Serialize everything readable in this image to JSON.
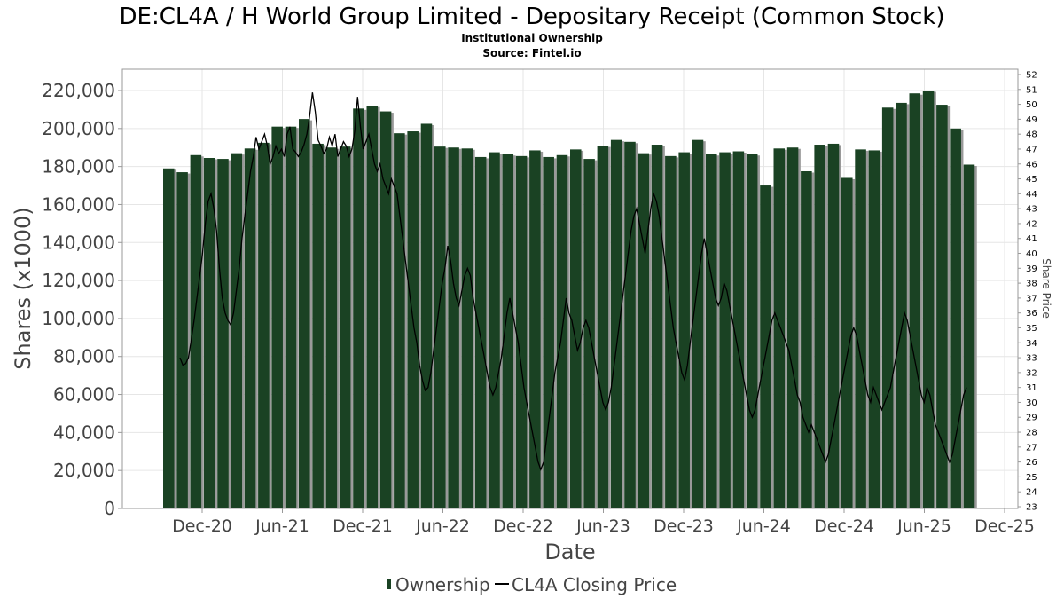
{
  "title": "DE:CL4A / H World Group Limited - Depositary Receipt (Common Stock)",
  "subtitle_1": "Institutional Ownership",
  "subtitle_2": "Source: Fintel.io",
  "chart_data": {
    "type": "bar",
    "xlabel": "Date",
    "ylabel": "Shares (x1000)",
    "y2label": "Share Price",
    "ylim": [
      0,
      220000
    ],
    "y2lim": [
      23,
      52
    ],
    "x_tick_labels": [
      "Dec-20",
      "Jun-21",
      "Dec-21",
      "Jun-22",
      "Dec-22",
      "Jun-23",
      "Dec-23",
      "Jun-24",
      "Dec-24",
      "Jun-25",
      "Dec-25"
    ],
    "y_tick_labels": [
      "0",
      "20,000",
      "40,000",
      "60,000",
      "80,000",
      "100,000",
      "120,000",
      "140,000",
      "160,000",
      "180,000",
      "200,000",
      "220,000"
    ],
    "y2_tick_labels": [
      "23",
      "24",
      "25",
      "26",
      "27",
      "28",
      "29",
      "30",
      "31",
      "32",
      "33",
      "34",
      "35",
      "36",
      "37",
      "38",
      "39",
      "40",
      "41",
      "42",
      "43",
      "44",
      "45",
      "46",
      "47",
      "48",
      "49",
      "50",
      "51",
      "52"
    ],
    "legend": [
      {
        "name": "Ownership",
        "color": "#1a4223"
      },
      {
        "name": "CL4A Closing Price",
        "color": "#000000"
      }
    ],
    "legend_position": "bottom-center",
    "grid": true,
    "bar_color": "#1a4223",
    "bar_shadow_color": "#999999",
    "series": [
      {
        "name": "Ownership",
        "type": "bar",
        "values": [
          179000,
          177000,
          186000,
          184500,
          184000,
          187000,
          189500,
          192500,
          201000,
          201000,
          205000,
          192000,
          190000,
          190500,
          210500,
          212000,
          209000,
          197500,
          198500,
          202500,
          190500,
          190000,
          189500,
          185000,
          187500,
          186500,
          185500,
          188500,
          185000,
          186000,
          189000,
          184000,
          191000,
          194000,
          193000,
          187000,
          191500,
          185500,
          187500,
          194000,
          186500,
          187500,
          188000,
          186500,
          170000,
          189500,
          190000,
          177500,
          191500,
          192000,
          174000,
          189000,
          188500,
          211000,
          213500,
          218500,
          220000,
          212500,
          200000,
          181000
        ]
      },
      {
        "name": "CL4A Closing Price",
        "type": "line",
        "x_start_index": 0.2,
        "x_step": 0.125,
        "values": [
          33.0,
          32.5,
          32.6,
          33.0,
          34.2,
          35.5,
          37.0,
          38.5,
          40.0,
          42.0,
          43.5,
          44.0,
          43.0,
          41.5,
          39.0,
          37.0,
          36.0,
          35.5,
          35.2,
          36.0,
          37.5,
          39.0,
          41.0,
          42.5,
          44.0,
          45.5,
          46.5,
          47.8,
          47.0,
          47.5,
          48.0,
          47.2,
          46.0,
          46.5,
          47.2,
          46.7,
          47.0,
          46.5,
          48.0,
          48.5,
          47.0,
          46.8,
          46.5,
          46.8,
          47.3,
          48.0,
          49.2,
          50.8,
          49.5,
          47.6,
          47.2,
          46.7,
          47.0,
          47.8,
          47.2,
          48.0,
          46.5,
          47.0,
          47.5,
          47.2,
          46.5,
          47.0,
          48.2,
          50.5,
          48.5,
          47.0,
          47.5,
          48.0,
          47.0,
          46.0,
          45.5,
          46.0,
          45.0,
          44.5,
          44.0,
          45.0,
          44.5,
          44.0,
          42.5,
          41.0,
          39.5,
          38.0,
          36.5,
          35.0,
          34.0,
          32.5,
          31.5,
          30.8,
          31.0,
          32.0,
          33.5,
          35.0,
          36.5,
          38.0,
          39.0,
          40.5,
          39.5,
          38.0,
          37.0,
          36.5,
          37.5,
          38.5,
          39.0,
          38.5,
          37.0,
          36.0,
          35.0,
          34.0,
          33.0,
          32.0,
          31.0,
          30.5,
          31.0,
          32.0,
          33.0,
          34.5,
          36.0,
          37.0,
          36.0,
          35.0,
          34.0,
          32.5,
          31.0,
          30.0,
          29.0,
          28.0,
          27.0,
          26.0,
          25.5,
          26.0,
          27.5,
          29.0,
          30.5,
          32.0,
          33.0,
          34.0,
          35.5,
          37.0,
          36.0,
          35.5,
          34.5,
          33.5,
          34.0,
          35.0,
          35.5,
          35.0,
          34.0,
          33.0,
          32.0,
          31.0,
          30.0,
          29.5,
          30.0,
          31.0,
          32.5,
          34.0,
          35.5,
          37.0,
          38.5,
          40.0,
          41.5,
          42.5,
          43.0,
          42.0,
          41.0,
          40.0,
          41.5,
          43.0,
          44.0,
          43.5,
          42.5,
          41.0,
          39.5,
          38.0,
          36.5,
          35.0,
          34.0,
          33.0,
          32.0,
          31.5,
          32.5,
          34.0,
          35.5,
          37.0,
          38.5,
          40.0,
          41.0,
          40.0,
          39.0,
          38.0,
          37.0,
          36.5,
          37.0,
          38.0,
          37.5,
          36.5,
          35.5,
          34.5,
          33.5,
          32.5,
          31.5,
          30.5,
          29.5,
          29.0,
          29.5,
          30.5,
          31.5,
          32.5,
          33.5,
          34.5,
          35.5,
          36.0,
          35.5,
          35.0,
          34.5,
          34.0,
          33.5,
          32.5,
          31.5,
          30.5,
          30.0,
          29.0,
          28.5,
          28.0,
          28.5,
          28.0,
          27.5,
          27.0,
          26.5,
          26.0,
          26.5,
          27.5,
          28.5,
          29.5,
          30.5,
          31.5,
          32.5,
          33.5,
          34.5,
          35.0,
          34.5,
          33.5,
          32.5,
          31.5,
          30.5,
          30.0,
          31.0,
          30.5,
          30.0,
          29.5,
          30.0,
          30.5,
          31.0,
          32.0,
          33.0,
          34.0,
          35.0,
          36.0,
          35.5,
          34.5,
          33.5,
          32.5,
          31.5,
          30.5,
          30.0,
          31.0,
          30.5,
          29.5,
          28.5,
          28.0,
          27.5,
          27.0,
          26.5,
          26.0,
          26.5,
          27.5,
          28.5,
          29.5,
          30.5,
          31.0
        ]
      }
    ]
  }
}
